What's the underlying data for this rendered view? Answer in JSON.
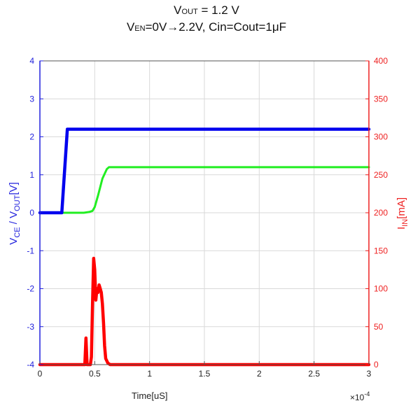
{
  "chart_data": {
    "type": "line",
    "title": {
      "line1": {
        "v": "V",
        "sub": "OUT",
        "rest": " = 1.2 V"
      },
      "line2": {
        "v": "V",
        "sub": "EN",
        "rest": "=0V→2.2V, Cin=Cout=1μF"
      }
    },
    "xlabel": "Time[uS]",
    "x_multiplier": {
      "base": "×10",
      "exp": "-4"
    },
    "ylabel_left": {
      "a": "V",
      "a_sub": "CE",
      "mid": " / V",
      "b_sub": "OUT",
      "end": "[V]"
    },
    "ylabel_right": {
      "a": "I",
      "a_sub": "IN",
      "end": "[mA]"
    },
    "xlim": [
      0,
      3
    ],
    "ylim_left": [
      -4,
      4
    ],
    "ylim_right": [
      0,
      400
    ],
    "x_ticks": [
      "0",
      "0.5",
      "1",
      "1.5",
      "2",
      "2.5",
      "3"
    ],
    "y_left_ticks": [
      "4",
      "3",
      "2",
      "1",
      "0",
      "-1",
      "-2",
      "-3",
      "-4"
    ],
    "y_right_ticks": [
      "400",
      "350",
      "300",
      "250",
      "200",
      "150",
      "100",
      "50",
      "0"
    ],
    "grid": true,
    "colors": {
      "vce": "#0000ee",
      "vout": "#22ee22",
      "iin": "#ff0000",
      "left_axis": "#2222dd",
      "right_axis": "#ee2222"
    },
    "series": [
      {
        "key": "vce",
        "axis": "left",
        "x": [
          0,
          0.2,
          0.25,
          3
        ],
        "y": [
          0,
          0,
          2.2,
          2.2
        ]
      },
      {
        "key": "vout",
        "axis": "left",
        "x": [
          0,
          0.4,
          0.45,
          0.48,
          0.5,
          0.53,
          0.57,
          0.61,
          0.63,
          3
        ],
        "y": [
          0,
          0,
          0.02,
          0.05,
          0.15,
          0.45,
          0.9,
          1.15,
          1.2,
          1.2
        ]
      },
      {
        "key": "iin",
        "axis": "right",
        "x": [
          0,
          0.41,
          0.42,
          0.43,
          0.44,
          0.45,
          0.46,
          0.47,
          0.48,
          0.49,
          0.5,
          0.51,
          0.52,
          0.53,
          0.54,
          0.55,
          0.56,
          0.57,
          0.58,
          0.59,
          0.6,
          0.62,
          0.64,
          3
        ],
        "y": [
          0,
          0,
          35,
          0,
          0,
          0,
          0,
          10,
          80,
          140,
          125,
          85,
          100,
          95,
          105,
          100,
          95,
          80,
          55,
          25,
          8,
          2,
          0,
          0
        ]
      }
    ]
  }
}
